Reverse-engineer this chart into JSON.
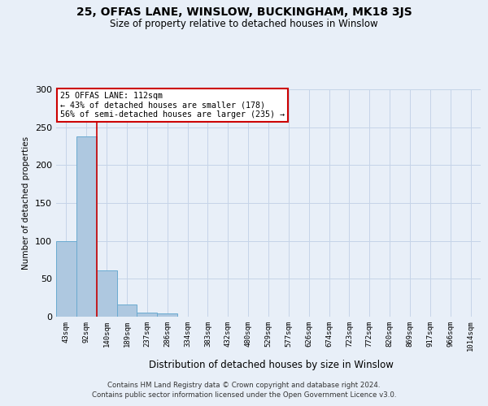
{
  "title": "25, OFFAS LANE, WINSLOW, BUCKINGHAM, MK18 3JS",
  "subtitle": "Size of property relative to detached houses in Winslow",
  "xlabel": "Distribution of detached houses by size in Winslow",
  "ylabel": "Number of detached properties",
  "bin_labels": [
    "43sqm",
    "92sqm",
    "140sqm",
    "189sqm",
    "237sqm",
    "286sqm",
    "334sqm",
    "383sqm",
    "432sqm",
    "480sqm",
    "529sqm",
    "577sqm",
    "626sqm",
    "674sqm",
    "723sqm",
    "772sqm",
    "820sqm",
    "869sqm",
    "917sqm",
    "966sqm",
    "1014sqm"
  ],
  "bar_heights": [
    100,
    238,
    61,
    16,
    5,
    4,
    0,
    0,
    0,
    0,
    0,
    0,
    0,
    0,
    0,
    0,
    0,
    0,
    0,
    0,
    0
  ],
  "bar_color": "#aec8e0",
  "bar_edge_color": "#6aaad0",
  "background_color": "#e8eff8",
  "grid_color": "#c5d4e8",
  "vline_x": 1.5,
  "vline_color": "#cc0000",
  "annotation_text": "25 OFFAS LANE: 112sqm\n← 43% of detached houses are smaller (178)\n56% of semi-detached houses are larger (235) →",
  "annotation_box_facecolor": "#ffffff",
  "annotation_box_edgecolor": "#cc0000",
  "ylim": [
    0,
    300
  ],
  "yticks": [
    0,
    50,
    100,
    150,
    200,
    250,
    300
  ],
  "footer_line1": "Contains HM Land Registry data © Crown copyright and database right 2024.",
  "footer_line2": "Contains public sector information licensed under the Open Government Licence v3.0."
}
